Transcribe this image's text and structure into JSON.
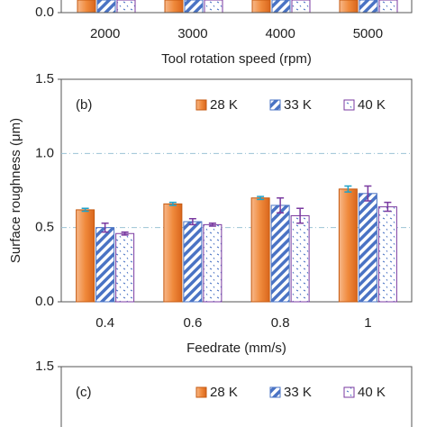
{
  "chart_data": [
    {
      "type": "bar",
      "categories": [
        "2000",
        "3000",
        "4000",
        "5000"
      ],
      "x_label": "Tool rotation speed (rpm)",
      "yticks": [
        {
          "value": 0,
          "label": "0.0"
        }
      ]
    },
    {
      "type": "bar",
      "title": "(b)",
      "categories": [
        "0.4",
        "0.6",
        "0.8",
        "1"
      ],
      "x_label": "Feedrate (mm/s)",
      "y_label": "Surface roughness (μm)",
      "ylim": [
        0,
        1.5
      ],
      "yticks": [
        {
          "value": 0,
          "label": "0.0"
        },
        {
          "value": 0.5,
          "label": "0.5"
        },
        {
          "value": 1,
          "label": "1.0"
        },
        {
          "value": 1.5,
          "label": "1.5"
        }
      ],
      "grid": true,
      "legend": "top-right",
      "series": [
        {
          "name": "28 K",
          "color": "#f08a3c",
          "pattern": "solid",
          "error_color": "#1fa2c9",
          "values": [
            0.62,
            0.66,
            0.7,
            0.76
          ],
          "errors": [
            0.01,
            0.01,
            0.01,
            0.02
          ]
        },
        {
          "name": "33 K",
          "color": "#4a73c4",
          "pattern": "hatch",
          "error_color": "#7a3aa0",
          "values": [
            0.5,
            0.54,
            0.65,
            0.73
          ],
          "errors": [
            0.03,
            0.02,
            0.05,
            0.05
          ]
        },
        {
          "name": "40 K",
          "color": "#7a3aa0",
          "pattern": "dots",
          "error_color": "#7a3aa0",
          "values": [
            0.46,
            0.52,
            0.58,
            0.64
          ],
          "errors": [
            0.01,
            0.01,
            0.05,
            0.03
          ]
        }
      ]
    },
    {
      "type": "bar",
      "title": "(c)",
      "legend": "top-right",
      "yticks": [
        {
          "value": 1.5,
          "label": "1.5"
        }
      ],
      "series": [
        {
          "name": "28 K",
          "color": "#f08a3c",
          "pattern": "solid"
        },
        {
          "name": "33 K",
          "color": "#4a73c4",
          "pattern": "hatch"
        },
        {
          "name": "40 K",
          "color": "#7a3aa0",
          "pattern": "dots"
        }
      ]
    }
  ]
}
